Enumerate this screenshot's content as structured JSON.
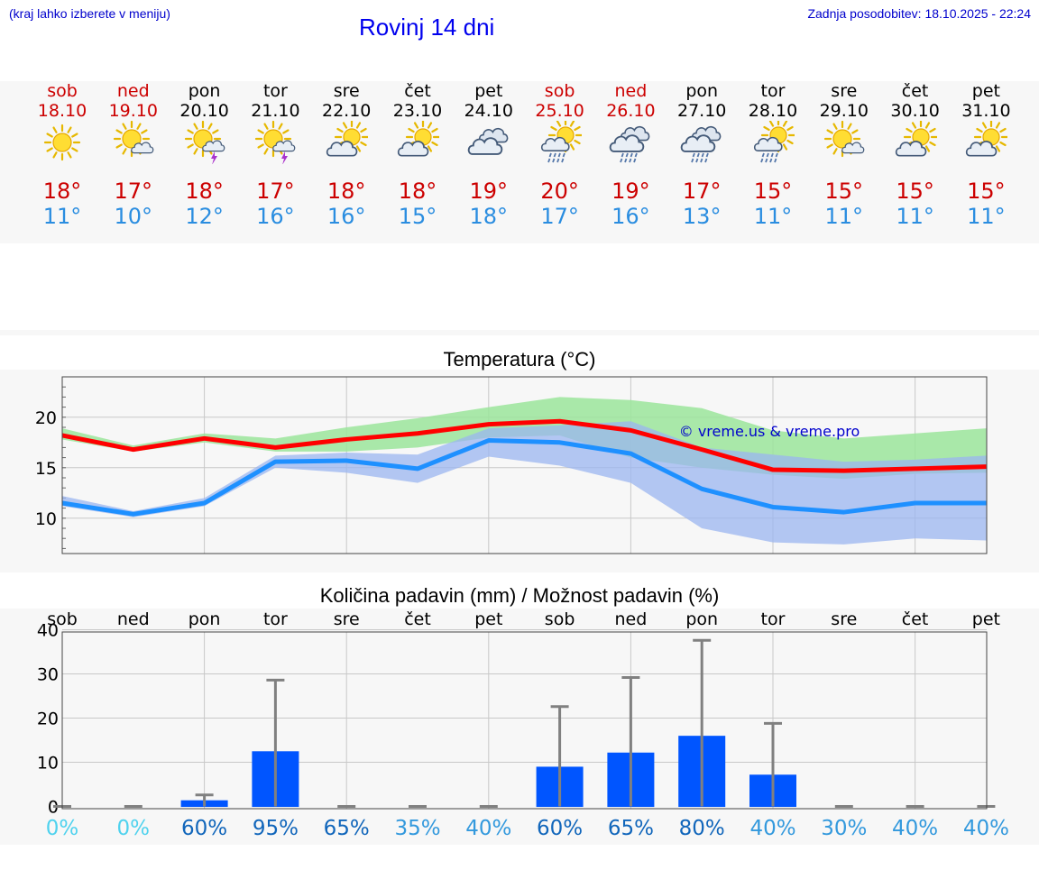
{
  "header": {
    "menu_hint": "(kraj lahko izberete v meniju)",
    "title": "Rovinj 14 dni",
    "last_update": "Zadnja posodobitev: 18.10.2025 - 22:24"
  },
  "colors": {
    "max_line": "#ff0000",
    "min_line": "#1e90ff",
    "max_band": "#9be59b",
    "min_band": "#9bb5f0",
    "bar": "#0055ff",
    "errbar": "#808080",
    "weekend": "#cc0000",
    "watermark": "#0000cc"
  },
  "days": [
    {
      "name": "sob",
      "date": "18.10",
      "icon": "sun-icon",
      "max": "18°",
      "min": "11°",
      "weekend": true
    },
    {
      "name": "ned",
      "date": "19.10",
      "icon": "sun-cloud-icon",
      "max": "17°",
      "min": "10°",
      "weekend": true
    },
    {
      "name": "pon",
      "date": "20.10",
      "icon": "sun-thunder-icon",
      "max": "18°",
      "min": "12°",
      "weekend": false
    },
    {
      "name": "tor",
      "date": "21.10",
      "icon": "sun-thunder-icon",
      "max": "17°",
      "min": "16°",
      "weekend": false
    },
    {
      "name": "sre",
      "date": "22.10",
      "icon": "cloud-sun-icon",
      "max": "18°",
      "min": "16°",
      "weekend": false
    },
    {
      "name": "čet",
      "date": "23.10",
      "icon": "cloud-sun-icon",
      "max": "18°",
      "min": "15°",
      "weekend": false
    },
    {
      "name": "pet",
      "date": "24.10",
      "icon": "cloudy-icon",
      "max": "19°",
      "min": "18°",
      "weekend": false
    },
    {
      "name": "sob",
      "date": "25.10",
      "icon": "sun-rain-icon",
      "max": "20°",
      "min": "17°",
      "weekend": true
    },
    {
      "name": "ned",
      "date": "26.10",
      "icon": "cloud-rain-icon",
      "max": "19°",
      "min": "16°",
      "weekend": true
    },
    {
      "name": "pon",
      "date": "27.10",
      "icon": "cloud-rain-icon",
      "max": "17°",
      "min": "13°",
      "weekend": false
    },
    {
      "name": "tor",
      "date": "28.10",
      "icon": "sun-rain-icon",
      "max": "15°",
      "min": "11°",
      "weekend": false
    },
    {
      "name": "sre",
      "date": "29.10",
      "icon": "sun-cloud-icon",
      "max": "15°",
      "min": "11°",
      "weekend": false
    },
    {
      "name": "čet",
      "date": "30.10",
      "icon": "cloud-sun-icon",
      "max": "15°",
      "min": "11°",
      "weekend": false
    },
    {
      "name": "pet",
      "date": "31.10",
      "icon": "cloud-sun-icon",
      "max": "15°",
      "min": "11°",
      "weekend": false
    }
  ],
  "chart_data": [
    {
      "type": "line",
      "title": "Temperatura (°C)",
      "watermark": "© vreme.us & vreme.pro",
      "ylim": [
        6.5,
        24
      ],
      "yticks": [
        "10",
        "15",
        "20"
      ],
      "ytick_values": [
        10,
        15,
        20
      ],
      "categories": [
        "sob",
        "ned",
        "pon",
        "tor",
        "sre",
        "čet",
        "pet",
        "sob",
        "ned",
        "pon",
        "tor",
        "sre",
        "čet",
        "pet"
      ],
      "series": [
        {
          "name": "max",
          "values": [
            18.2,
            16.8,
            17.9,
            17.0,
            17.8,
            18.4,
            19.3,
            19.6,
            18.7,
            16.8,
            14.8,
            14.7,
            14.9,
            15.1
          ],
          "band_low": [
            17.8,
            16.6,
            17.5,
            16.6,
            16.6,
            17.0,
            18.0,
            18.2,
            16.0,
            15.0,
            14.3,
            13.9,
            14.4,
            14.5
          ],
          "band_high": [
            18.9,
            17.2,
            18.4,
            17.9,
            19.0,
            19.9,
            21.0,
            22.0,
            21.7,
            20.9,
            18.7,
            17.9,
            18.4,
            18.9
          ]
        },
        {
          "name": "min",
          "values": [
            11.5,
            10.4,
            11.5,
            15.6,
            15.7,
            14.9,
            17.7,
            17.5,
            16.4,
            12.9,
            11.1,
            10.6,
            11.5,
            11.5
          ],
          "band_low": [
            11.2,
            10.1,
            11.2,
            15.0,
            14.5,
            13.5,
            16.1,
            15.2,
            13.5,
            9.0,
            7.6,
            7.4,
            8.0,
            7.8
          ],
          "band_high": [
            12.2,
            10.7,
            12.0,
            16.2,
            16.5,
            16.3,
            18.9,
            19.2,
            19.6,
            17.0,
            16.3,
            15.6,
            15.8,
            16.2
          ]
        }
      ]
    },
    {
      "type": "bar",
      "title": "Količina padavin (mm) / Možnost padavin (%)",
      "ylim": [
        -0.5,
        39.5
      ],
      "yticks": [
        "0",
        "10",
        "20",
        "30",
        "40"
      ],
      "ytick_values": [
        0,
        10,
        20,
        30,
        40
      ],
      "categories": [
        "sob",
        "ned",
        "pon",
        "tor",
        "sre",
        "čet",
        "pet",
        "sob",
        "ned",
        "pon",
        "tor",
        "sre",
        "čet",
        "pet"
      ],
      "values": [
        0,
        0,
        1.4,
        12.5,
        0,
        0,
        0,
        9.0,
        12.2,
        16.0,
        7.2,
        0,
        0,
        0
      ],
      "err_high": [
        0,
        0,
        2.6,
        28.6,
        0,
        0,
        0,
        22.6,
        29.2,
        37.6,
        18.8,
        0,
        0,
        0
      ],
      "probabilities": [
        "0%",
        "0%",
        "60%",
        "95%",
        "65%",
        "35%",
        "40%",
        "60%",
        "65%",
        "80%",
        "40%",
        "30%",
        "40%",
        "40%"
      ],
      "probability_values": [
        0,
        0,
        60,
        95,
        65,
        35,
        40,
        60,
        65,
        80,
        40,
        30,
        40,
        40
      ]
    }
  ]
}
